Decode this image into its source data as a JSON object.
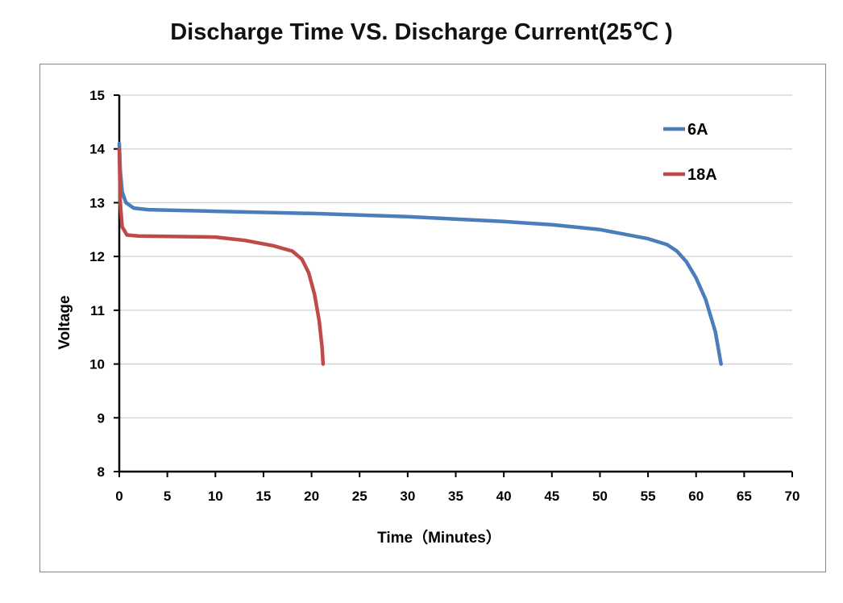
{
  "chart_data": {
    "type": "line",
    "title": "Discharge Time VS. Discharge Current(25℃ )",
    "xlabel": "Time（Minutes）",
    "ylabel": "Voltage",
    "xlim": [
      0,
      70
    ],
    "ylim": [
      8,
      15
    ],
    "xticks": [
      0,
      5,
      10,
      15,
      20,
      25,
      30,
      35,
      40,
      45,
      50,
      55,
      60,
      65,
      70
    ],
    "yticks": [
      8,
      9,
      10,
      11,
      12,
      13,
      14,
      15
    ],
    "grid": true,
    "legend_position": "top-right",
    "series": [
      {
        "name": "6A",
        "color": "#4a7ebb",
        "x": [
          0,
          0.1,
          0.3,
          0.7,
          1.5,
          3,
          10,
          20,
          30,
          40,
          45,
          50,
          55,
          57,
          58,
          59,
          60,
          61,
          62,
          62.6
        ],
        "y": [
          14.1,
          13.6,
          13.2,
          13.0,
          12.9,
          12.87,
          12.84,
          12.8,
          12.74,
          12.65,
          12.59,
          12.5,
          12.33,
          12.22,
          12.1,
          11.9,
          11.6,
          11.2,
          10.6,
          10.0
        ]
      },
      {
        "name": "18A",
        "color": "#be4b48",
        "x": [
          0,
          0.1,
          0.3,
          0.8,
          2,
          10,
          13,
          16,
          18,
          19,
          19.7,
          20.3,
          20.8,
          21.1,
          21.2
        ],
        "y": [
          14.0,
          13.0,
          12.55,
          12.4,
          12.38,
          12.36,
          12.3,
          12.2,
          12.1,
          11.95,
          11.7,
          11.3,
          10.8,
          10.3,
          10.0
        ]
      }
    ]
  }
}
